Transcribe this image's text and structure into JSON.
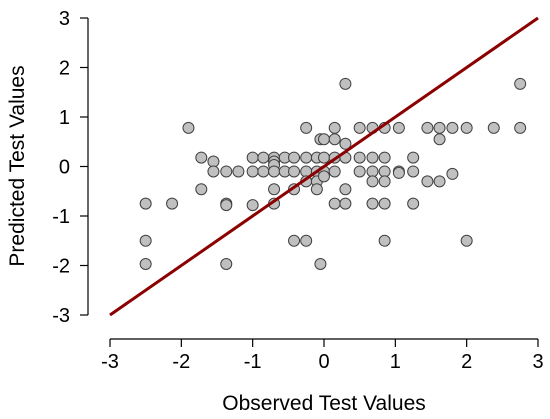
{
  "chart_data": {
    "type": "scatter",
    "xlabel": "Observed Test Values",
    "ylabel": "Predicted Test Values",
    "xlim": [
      -3,
      3
    ],
    "ylim": [
      -3,
      3
    ],
    "x_ticks": [
      "-3",
      "-2",
      "-1",
      "0",
      "1",
      "2",
      "3"
    ],
    "y_ticks": [
      "-3",
      "-2",
      "-1",
      "0",
      "1",
      "2",
      "3"
    ],
    "grid": false,
    "point_fill": "#c0c0c0",
    "point_stroke": "#404040",
    "line_color": "#8b0000",
    "reference_line": {
      "x": [
        -3,
        3
      ],
      "y": [
        -3,
        3
      ]
    },
    "points": [
      {
        "x": -2.5,
        "y": -0.75
      },
      {
        "x": -2.5,
        "y": -1.5
      },
      {
        "x": -2.5,
        "y": -1.97
      },
      {
        "x": -2.13,
        "y": -0.75
      },
      {
        "x": -1.9,
        "y": 0.78
      },
      {
        "x": -1.72,
        "y": 0.18
      },
      {
        "x": -1.72,
        "y": -0.46
      },
      {
        "x": -1.55,
        "y": 0.1
      },
      {
        "x": -1.55,
        "y": -0.1
      },
      {
        "x": -1.37,
        "y": -0.1
      },
      {
        "x": -1.37,
        "y": -0.75
      },
      {
        "x": -1.37,
        "y": -0.78
      },
      {
        "x": -1.37,
        "y": -1.97
      },
      {
        "x": -1.2,
        "y": -0.1
      },
      {
        "x": -1.0,
        "y": 0.18
      },
      {
        "x": -1.0,
        "y": -0.1
      },
      {
        "x": -1.0,
        "y": -0.78
      },
      {
        "x": -0.85,
        "y": 0.18
      },
      {
        "x": -0.85,
        "y": -0.1
      },
      {
        "x": -0.7,
        "y": 0.18
      },
      {
        "x": -0.7,
        "y": 0.1
      },
      {
        "x": -0.7,
        "y": 0.03
      },
      {
        "x": -0.7,
        "y": -0.1
      },
      {
        "x": -0.7,
        "y": -0.46
      },
      {
        "x": -0.7,
        "y": -0.75
      },
      {
        "x": -0.55,
        "y": 0.18
      },
      {
        "x": -0.55,
        "y": -0.1
      },
      {
        "x": -0.42,
        "y": 0.18
      },
      {
        "x": -0.42,
        "y": -0.1
      },
      {
        "x": -0.42,
        "y": -0.46
      },
      {
        "x": -0.42,
        "y": -1.5
      },
      {
        "x": -0.25,
        "y": 0.78
      },
      {
        "x": -0.25,
        "y": 0.18
      },
      {
        "x": -0.25,
        "y": -0.1
      },
      {
        "x": -0.25,
        "y": -0.3
      },
      {
        "x": -0.25,
        "y": -1.5
      },
      {
        "x": -0.1,
        "y": 0.18
      },
      {
        "x": -0.1,
        "y": -0.1
      },
      {
        "x": -0.1,
        "y": -0.3
      },
      {
        "x": -0.1,
        "y": -0.46
      },
      {
        "x": -0.05,
        "y": 0.55
      },
      {
        "x": -0.05,
        "y": -1.97
      },
      {
        "x": 0.0,
        "y": 0.55
      },
      {
        "x": 0.0,
        "y": 0.18
      },
      {
        "x": 0.0,
        "y": -0.1
      },
      {
        "x": 0.0,
        "y": -0.2
      },
      {
        "x": 0.15,
        "y": 0.78
      },
      {
        "x": 0.15,
        "y": 0.55
      },
      {
        "x": 0.15,
        "y": 0.18
      },
      {
        "x": 0.15,
        "y": -0.1
      },
      {
        "x": 0.15,
        "y": -0.75
      },
      {
        "x": 0.3,
        "y": 1.67
      },
      {
        "x": 0.3,
        "y": 0.46
      },
      {
        "x": 0.3,
        "y": 0.18
      },
      {
        "x": 0.3,
        "y": -0.46
      },
      {
        "x": 0.3,
        "y": -0.75
      },
      {
        "x": 0.5,
        "y": 0.78
      },
      {
        "x": 0.5,
        "y": 0.18
      },
      {
        "x": 0.5,
        "y": -0.1
      },
      {
        "x": 0.68,
        "y": 0.78
      },
      {
        "x": 0.68,
        "y": 0.18
      },
      {
        "x": 0.68,
        "y": -0.1
      },
      {
        "x": 0.68,
        "y": -0.3
      },
      {
        "x": 0.68,
        "y": -0.75
      },
      {
        "x": 0.85,
        "y": 0.78
      },
      {
        "x": 0.85,
        "y": 0.18
      },
      {
        "x": 0.85,
        "y": -0.1
      },
      {
        "x": 0.85,
        "y": -0.3
      },
      {
        "x": 0.85,
        "y": -0.75
      },
      {
        "x": 0.85,
        "y": -1.5
      },
      {
        "x": 1.05,
        "y": 0.78
      },
      {
        "x": 1.05,
        "y": -0.1
      },
      {
        "x": 1.05,
        "y": -0.13
      },
      {
        "x": 1.25,
        "y": 0.18
      },
      {
        "x": 1.25,
        "y": -0.1
      },
      {
        "x": 1.25,
        "y": -0.75
      },
      {
        "x": 1.45,
        "y": 0.78
      },
      {
        "x": 1.45,
        "y": -0.3
      },
      {
        "x": 1.62,
        "y": 0.78
      },
      {
        "x": 1.62,
        "y": 0.55
      },
      {
        "x": 1.62,
        "y": -0.3
      },
      {
        "x": 1.8,
        "y": 0.78
      },
      {
        "x": 1.8,
        "y": -0.15
      },
      {
        "x": 2.0,
        "y": 0.78
      },
      {
        "x": 2.0,
        "y": -1.5
      },
      {
        "x": 2.38,
        "y": 0.78
      },
      {
        "x": 2.75,
        "y": 1.67
      },
      {
        "x": 2.75,
        "y": 0.78
      }
    ]
  }
}
